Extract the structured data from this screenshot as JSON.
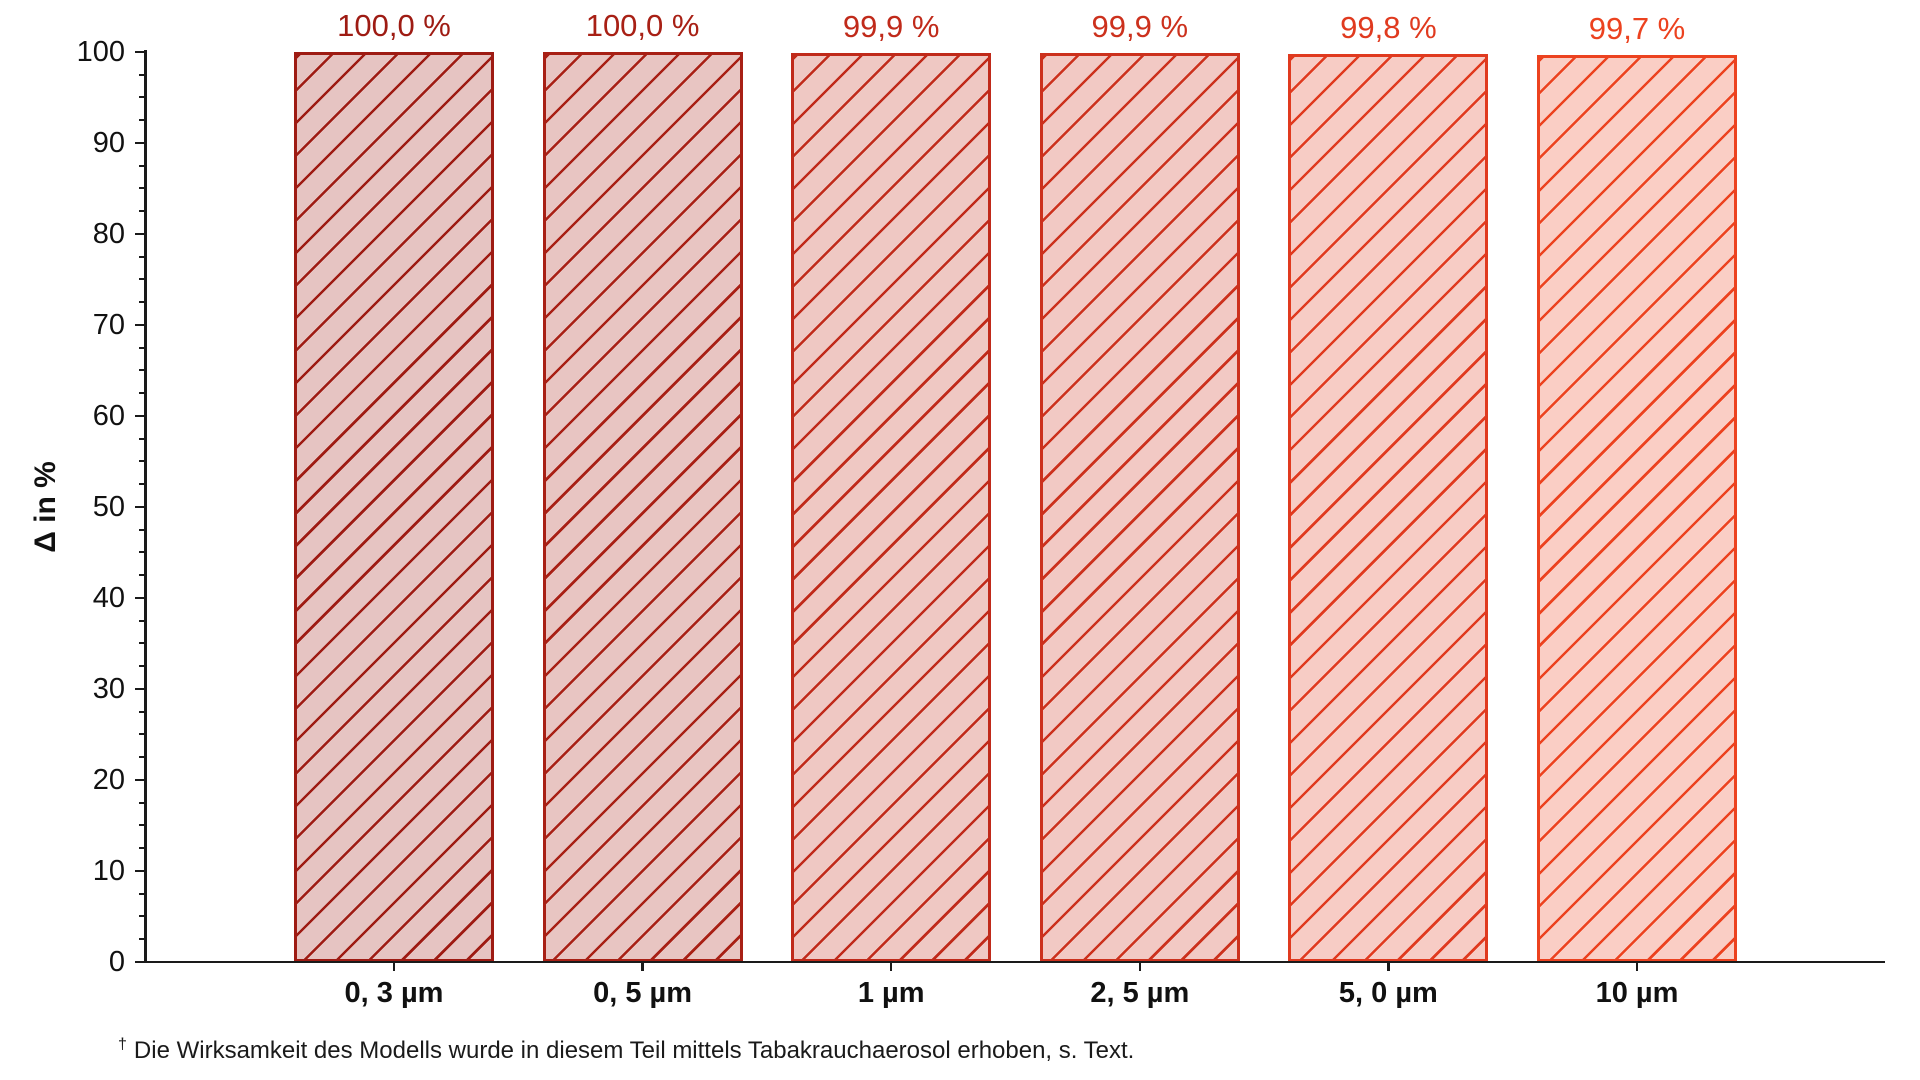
{
  "figure": {
    "background": "#ffffff",
    "axis_color": "#1a1a1a",
    "text_color": "#111111"
  },
  "chart_data": {
    "type": "bar",
    "title": "",
    "xlabel": "",
    "ylabel": "Δ in %",
    "ylim": [
      0,
      100
    ],
    "ytick_step": 10,
    "minor_tick_step": 2.5,
    "ytick_labels": [
      "0",
      "10",
      "20",
      "30",
      "40",
      "50",
      "60",
      "70",
      "80",
      "90",
      "100"
    ],
    "grid": false,
    "legend": null,
    "hatch": "/",
    "categories": [
      "0, 3 µm",
      "0, 5 µm",
      "1 µm",
      "2, 5 µm",
      "5, 0 µm",
      "10 µm"
    ],
    "values": [
      100.0,
      100.0,
      99.9,
      99.9,
      99.8,
      99.7
    ],
    "bar_labels": [
      "100,0 %",
      "100,0 %",
      "99,9 %",
      "99,9 %",
      "99,8 %",
      "99,7 %"
    ],
    "bar_edge_colors": [
      "#9e1b13",
      "#a82015",
      "#c02a1a",
      "#cc311d",
      "#e03a1f",
      "#ec421f"
    ],
    "bar_fill_colors": [
      "#e6c4c2",
      "#e8c5c2",
      "#efc8c3",
      "#f2c9c4",
      "#f7ccc5",
      "#facec5"
    ]
  },
  "footnote": {
    "marker": "†",
    "text": "Die Wirksamkeit des Modells wurde in diesem Teil mittels Tabakrauchaerosol erhoben, s. Text."
  }
}
